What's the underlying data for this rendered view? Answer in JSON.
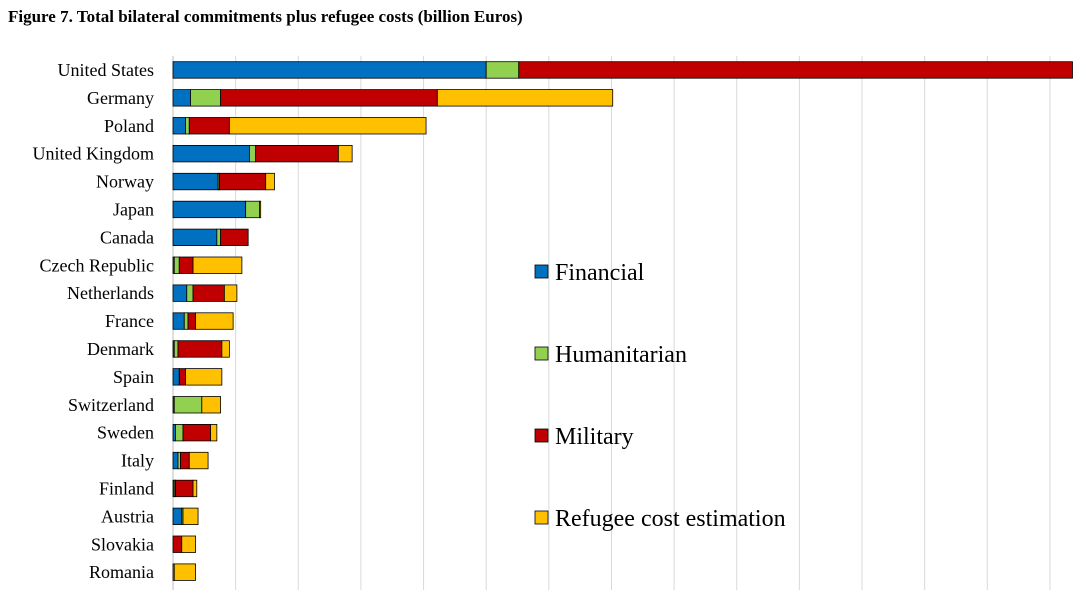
{
  "title": "Figure 7. Total bilateral commitments plus refugee costs (billion Euros)",
  "chart_data": {
    "type": "bar",
    "orientation": "horizontal",
    "stacked": true,
    "title": "Figure 7. Total bilateral commitments plus refugee costs (billion Euros)",
    "xlabel": "",
    "ylabel": "",
    "xlim": [
      0,
      72
    ],
    "grid": true,
    "legend_position": "center-right",
    "categories": [
      "United States",
      "Germany",
      "Poland",
      "United Kingdom",
      "Norway",
      "Japan",
      "Canada",
      "Czech Republic",
      "Netherlands",
      "France",
      "Denmark",
      "Spain",
      "Switzerland",
      "Sweden",
      "Italy",
      "Finland",
      "Austria",
      "Slovakia",
      "Romania"
    ],
    "series": [
      {
        "name": "Financial",
        "color": "#0070C0",
        "values": [
          25.0,
          1.4,
          1.0,
          6.1,
          3.6,
          5.8,
          3.5,
          0.1,
          1.1,
          0.9,
          0.1,
          0.5,
          0.1,
          0.2,
          0.4,
          0.1,
          0.7,
          0.0,
          0.0
        ]
      },
      {
        "name": "Humanitarian",
        "color": "#92D050",
        "values": [
          2.6,
          2.4,
          0.3,
          0.5,
          0.1,
          1.1,
          0.3,
          0.4,
          0.5,
          0.3,
          0.3,
          0.0,
          2.2,
          0.6,
          0.2,
          0.1,
          0.1,
          0.0,
          0.1
        ]
      },
      {
        "name": "Military",
        "color": "#C00000",
        "values": [
          44.2,
          17.3,
          3.2,
          6.6,
          3.7,
          0.0,
          2.2,
          1.1,
          2.5,
          0.6,
          3.5,
          0.5,
          0.0,
          2.2,
          0.7,
          1.4,
          0.0,
          0.7,
          0.0
        ]
      },
      {
        "name": "Refugee cost estimation",
        "color": "#FFC000",
        "values": [
          0.0,
          14.0,
          15.7,
          1.1,
          0.7,
          0.1,
          0.0,
          3.9,
          1.0,
          3.0,
          0.6,
          2.9,
          1.5,
          0.5,
          1.5,
          0.3,
          1.2,
          1.1,
          1.7
        ]
      }
    ]
  }
}
